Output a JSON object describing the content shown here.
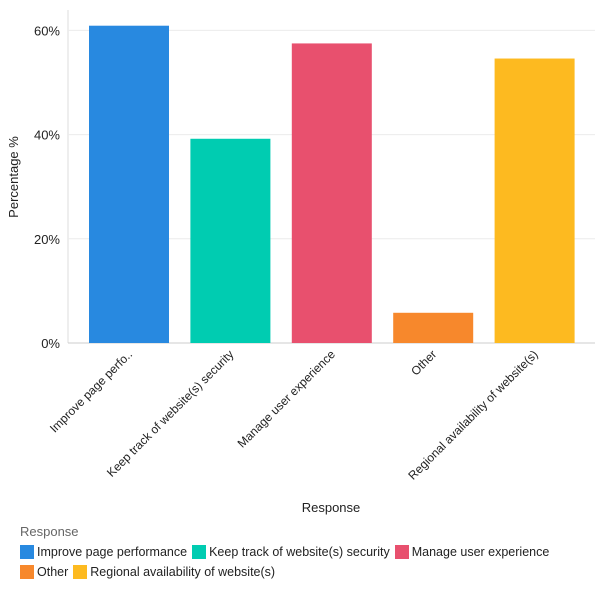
{
  "chart_data": {
    "type": "bar",
    "title": "",
    "xlabel": "Response",
    "ylabel": "Percentage %",
    "ylim": [
      0,
      64
    ],
    "yticks": [
      0,
      20,
      40,
      60
    ],
    "ytick_labels": [
      "0%",
      "20%",
      "40%",
      "60%"
    ],
    "grid": true,
    "categories": [
      "Improve page perfo..",
      "Keep track of website(s) security",
      "Manage user experience",
      "Other",
      "Regional availability of website(s)"
    ],
    "values": [
      60.9,
      39.2,
      57.5,
      5.8,
      54.6
    ],
    "colors": [
      "#2889e0",
      "#00ccb1",
      "#e8506e",
      "#f7882c",
      "#fdba20"
    ],
    "legend": {
      "title": "Response",
      "placement": "bottom-left",
      "entries": [
        "Improve page performance",
        "Keep track of website(s) security",
        "Manage user experience",
        "Other",
        "Regional availability of website(s)"
      ]
    }
  }
}
